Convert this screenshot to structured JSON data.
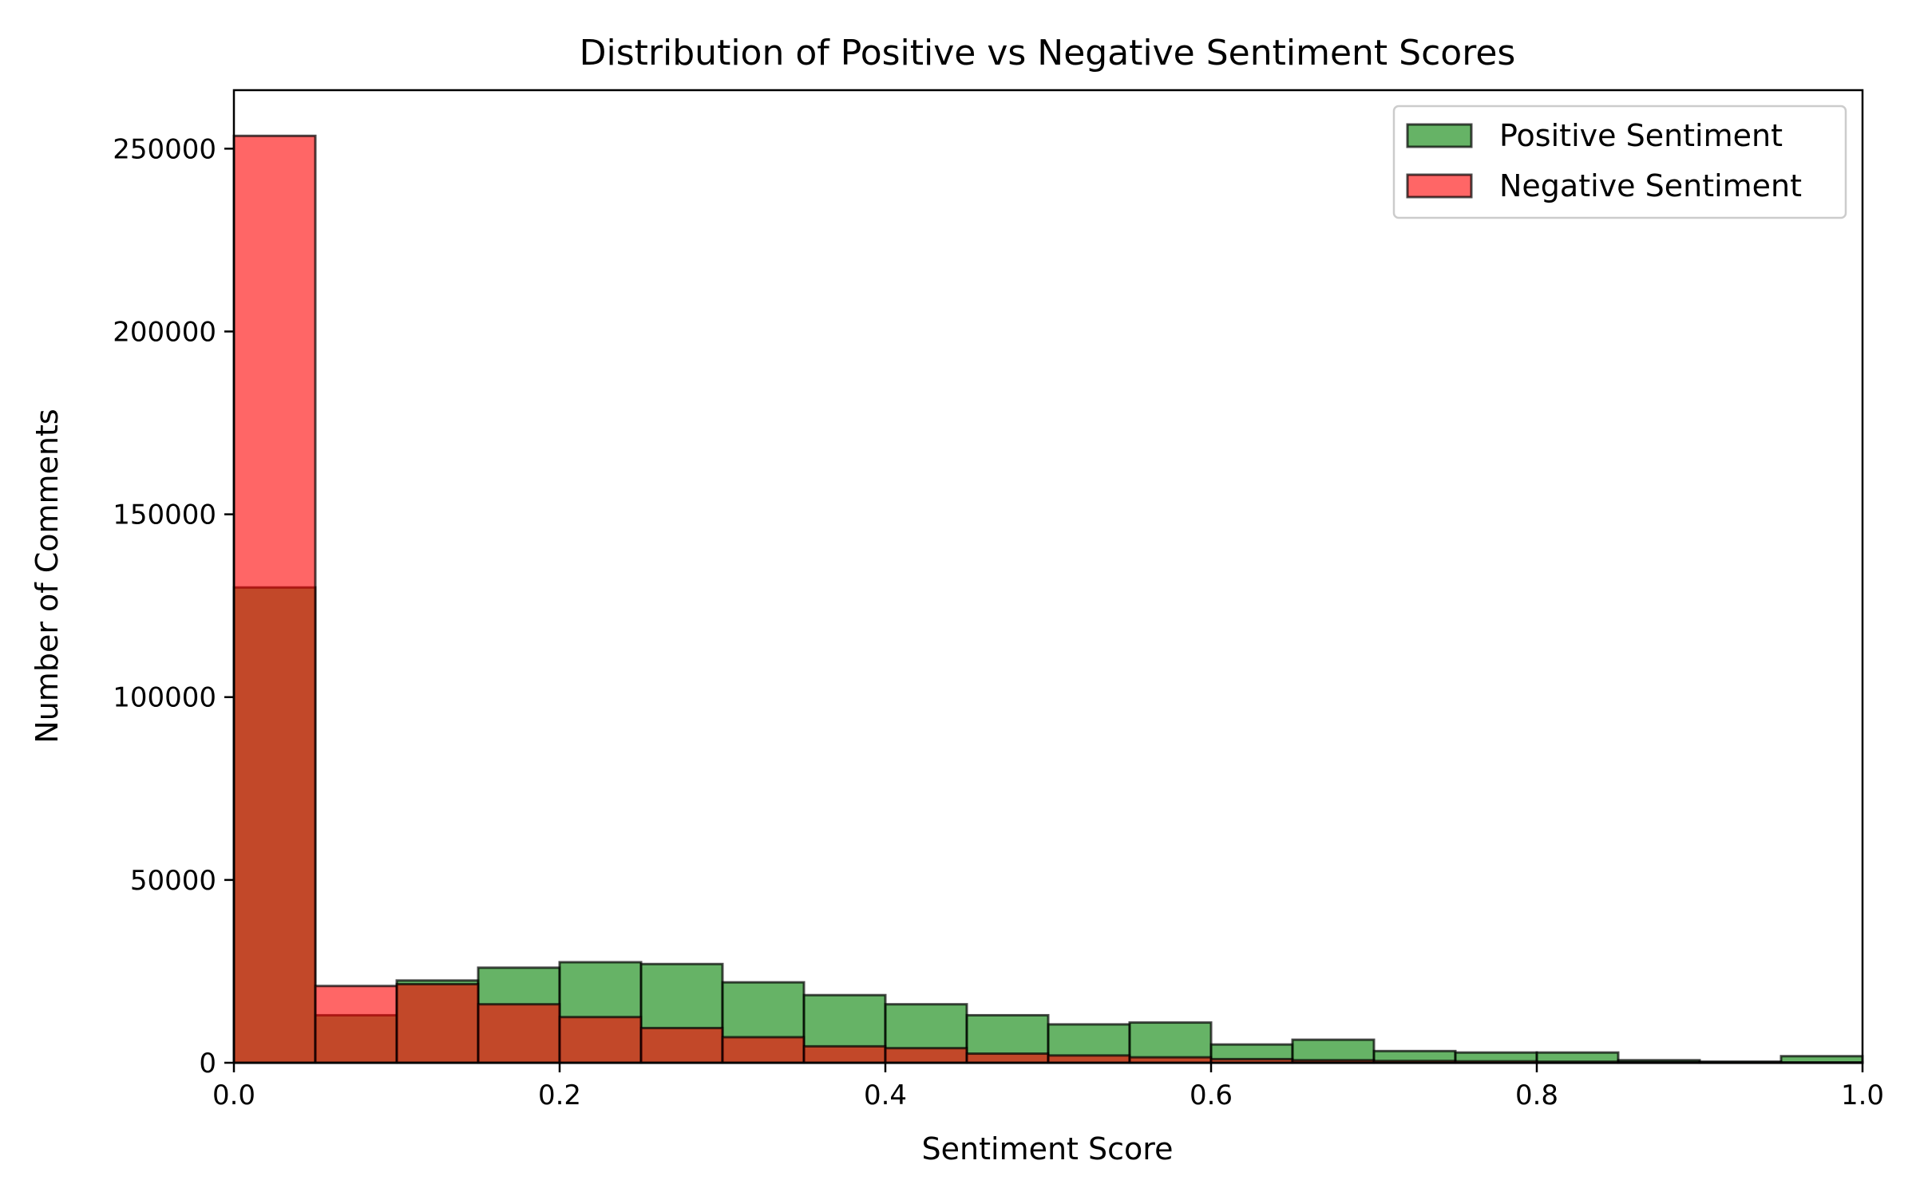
{
  "chart_data": {
    "type": "bar",
    "title": "Distribution of Positive vs Negative Sentiment Scores",
    "xlabel": "Sentiment Score",
    "ylabel": "Number of Comments",
    "xlim": [
      0.0,
      1.0
    ],
    "ylim": [
      0,
      266000
    ],
    "xticks": [
      0.0,
      0.2,
      0.4,
      0.6,
      0.8,
      1.0
    ],
    "xtick_labels": [
      "0.0",
      "0.2",
      "0.4",
      "0.6",
      "0.8",
      "1.0"
    ],
    "yticks": [
      0,
      50000,
      100000,
      150000,
      200000,
      250000
    ],
    "ytick_labels": [
      "0",
      "50000",
      "100000",
      "150000",
      "200000",
      "250000"
    ],
    "grid": false,
    "legend_position": "top-right",
    "bin_edges": [
      0.0,
      0.05,
      0.1,
      0.15,
      0.2,
      0.25,
      0.3,
      0.35,
      0.4,
      0.45,
      0.5,
      0.55,
      0.6,
      0.65,
      0.7,
      0.75,
      0.8,
      0.85,
      0.9,
      0.95,
      1.0
    ],
    "series": [
      {
        "name": "Positive Sentiment",
        "color": "#008000",
        "alpha": 0.6,
        "values": [
          130000,
          13000,
          22500,
          26000,
          27500,
          27000,
          22000,
          18500,
          16000,
          13000,
          10500,
          11000,
          5000,
          6300,
          3200,
          2800,
          2800,
          700,
          300,
          1800
        ]
      },
      {
        "name": "Negative Sentiment",
        "color": "#ff0000",
        "alpha": 0.6,
        "values": [
          253500,
          21000,
          21500,
          16000,
          12500,
          9500,
          7000,
          4500,
          4000,
          2500,
          2000,
          1500,
          1000,
          700,
          500,
          400,
          300,
          200,
          150,
          100
        ]
      }
    ]
  }
}
